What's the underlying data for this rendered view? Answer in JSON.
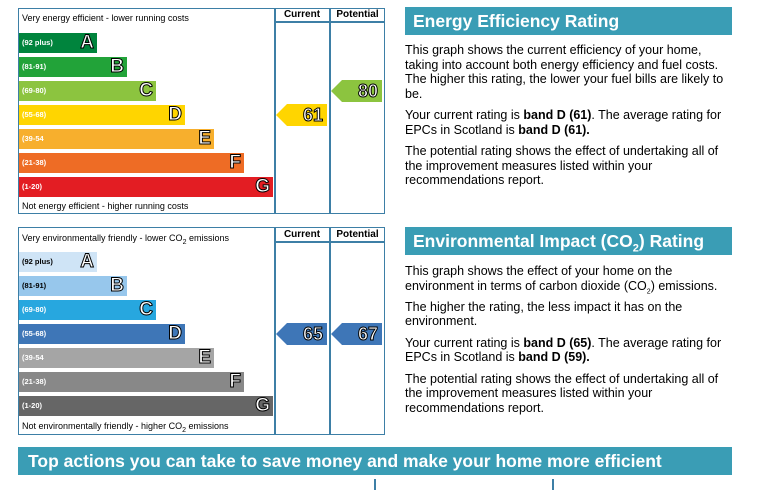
{
  "energy": {
    "caption_top": "Very energy efficient - lower running costs",
    "caption_bottom": "Not energy efficient - higher running costs",
    "col_current": "Current",
    "col_potential": "Potential",
    "bands": [
      {
        "range": "(92 plus)",
        "letter": "A",
        "color": "#00843d"
      },
      {
        "range": "(81-91)",
        "letter": "B",
        "color": "#22a339"
      },
      {
        "range": "(69-80)",
        "letter": "C",
        "color": "#8cc43f"
      },
      {
        "range": "(55-68)",
        "letter": "D",
        "color": "#ffd500"
      },
      {
        "range": "(39-54",
        "letter": "E",
        "color": "#f7af2d"
      },
      {
        "range": "(21-38)",
        "letter": "F",
        "color": "#ee6c25"
      },
      {
        "range": "(1-20)",
        "letter": "G",
        "color": "#e31d23"
      }
    ],
    "current": {
      "value": "61",
      "color": "#ffd500"
    },
    "potential": {
      "value": "80",
      "color": "#8cc43f"
    }
  },
  "environment": {
    "caption_top_pre": "Very environmentally friendly - lower CO",
    "caption_top_sub": "2",
    "caption_top_post": " emissions",
    "caption_bottom_pre": "Not environmentally friendly - higher CO",
    "caption_bottom_sub": "2",
    "caption_bottom_post": " emissions",
    "col_current": "Current",
    "col_potential": "Potential",
    "bands": [
      {
        "range": "(92 plus)",
        "letter": "A",
        "color": "#cfe4f6"
      },
      {
        "range": "(81-91)",
        "letter": "B",
        "color": "#97c7ec"
      },
      {
        "range": "(69-80)",
        "letter": "C",
        "color": "#27a7df"
      },
      {
        "range": "(55-68)",
        "letter": "D",
        "color": "#3e76b7"
      },
      {
        "range": "(39-54",
        "letter": "E",
        "color": "#a5a5a5"
      },
      {
        "range": "(21-38)",
        "letter": "F",
        "color": "#888888"
      },
      {
        "range": "(1-20)",
        "letter": "G",
        "color": "#666666"
      }
    ],
    "current": {
      "value": "65",
      "color": "#3e76b7"
    },
    "potential": {
      "value": "67",
      "color": "#3e76b7"
    }
  },
  "eer_panel": {
    "heading": "Energy Efficiency Rating",
    "p1": "This graph shows the current efficiency of your home, taking into account both energy efficiency and fuel costs. The higher this rating, the lower your fuel bills are likely to be.",
    "p2_pre": "Your current rating is ",
    "p2_b1": "band D (61)",
    "p2_mid": ". The average rating for EPCs in Scotland is ",
    "p2_b2": "band D (61).",
    "p3": "The potential rating shows the effect of undertaking all of the improvement measures listed within your recommendations report."
  },
  "eir_panel": {
    "heading_pre": "Environmental Impact (CO",
    "heading_sub": "2",
    "heading_post": ") Rating",
    "p1_pre": "This graph shows the effect of your home on the environment in terms of carbon dioxide (CO",
    "p1_sub": "2",
    "p1_post": ") emissions. The higher the rating, the less impact it has on the environment.",
    "p2_pre": "Your current rating is ",
    "p2_b1": "band D (65)",
    "p2_mid": ". The average rating for EPCs in Scotland is ",
    "p2_b2": "band D (59).",
    "p3": "The potential rating shows the effect of undertaking all of the improvement measures listed within your recommendations report."
  },
  "footer_bar": "Top actions you can take to save money and make your home more efficient"
}
